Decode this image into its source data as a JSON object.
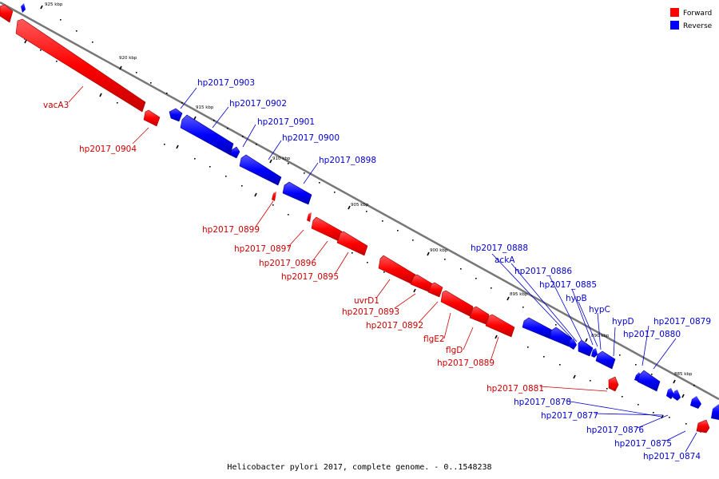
{
  "colors": {
    "forward": "#ff0000",
    "reverse": "#0000ff",
    "forward_label": "#cc0000",
    "reverse_label": "#0000cc",
    "backbone": "#888888",
    "tick": "#000000"
  },
  "legend": {
    "forward": "Forward",
    "reverse": "Reverse"
  },
  "caption": "Helicobacter pylori 2017, complete genome. - 0..1548238",
  "ticks": [
    "925 kbp",
    "920 kbp",
    "915 kbp",
    "910 kbp",
    "905 kbp",
    "900 kbp",
    "895 kbp",
    "890 kbp",
    "885 kbp"
  ],
  "labels": [
    "vacA3",
    "hp2017_0904",
    "hp2017_0903",
    "hp2017_0902",
    "hp2017_0901",
    "hp2017_0900",
    "hp2017_0898",
    "hp2017_0899",
    "hp2017_0897",
    "hp2017_0896",
    "hp2017_0895",
    "uvrD1",
    "hp2017_0893",
    "hp2017_0892",
    "flgE2",
    "flgD",
    "hp2017_0889",
    "hp2017_0888",
    "ackA",
    "hp2017_0886",
    "hp2017_0885",
    "hypB",
    "hypC",
    "hypD",
    "hp2017_0879",
    "hp2017_0880",
    "hp2017_0881",
    "hp2017_0878",
    "hp2017_0877",
    "hp2017_0876",
    "hp2017_0875",
    "hp2017_0874"
  ]
}
